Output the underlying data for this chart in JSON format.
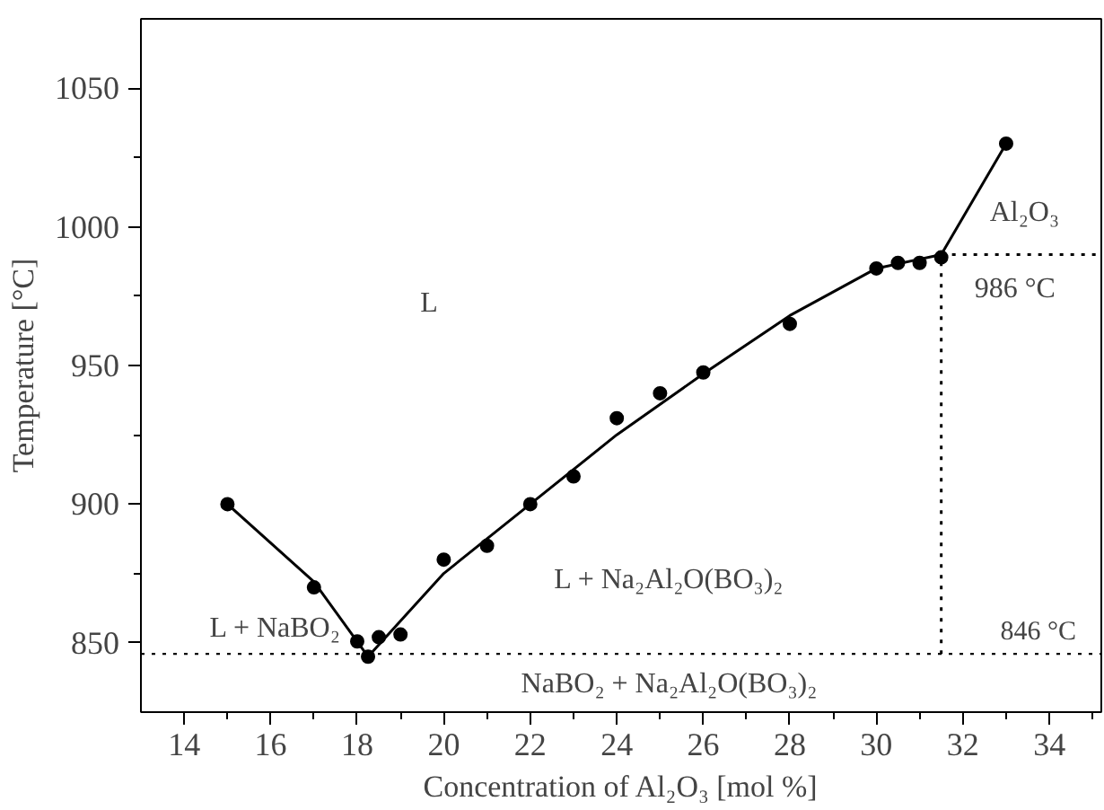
{
  "chart_data": {
    "type": "scatter",
    "xlabel": "Concentration of Al₂O₃ [mol %]",
    "ylabel": "Temperature [°C]",
    "xlim": [
      13,
      35.2
    ],
    "ylim": [
      825,
      1075
    ],
    "xticks": [
      14,
      16,
      18,
      20,
      22,
      24,
      26,
      28,
      30,
      32,
      34,
      {
        "value": 15,
        "label": null
      },
      {
        "value": 17,
        "label": null
      },
      {
        "value": 19,
        "label": null
      },
      {
        "value": 21,
        "label": null
      },
      {
        "value": 23,
        "label": null
      },
      {
        "value": 25,
        "label": null
      },
      {
        "value": 27,
        "label": null
      },
      {
        "value": 29,
        "label": null
      },
      {
        "value": 31,
        "label": null
      },
      {
        "value": 33,
        "label": null
      },
      {
        "value": 35,
        "label": null
      }
    ],
    "yticks": [
      850,
      900,
      950,
      1000,
      1050,
      {
        "value": 875,
        "label": null
      },
      {
        "value": 925,
        "label": null
      },
      {
        "value": 975,
        "label": null
      },
      {
        "value": 1025,
        "label": null
      }
    ],
    "grid": false,
    "series": [
      {
        "marker": "circle",
        "color": "#000000",
        "x": [
          15,
          17,
          18,
          18.25,
          18.5,
          19,
          20,
          21,
          22,
          23,
          24,
          25,
          26,
          28,
          30,
          30.5,
          31,
          31.5,
          33
        ],
        "values": [
          900,
          870,
          850.5,
          845,
          852,
          853,
          880,
          885,
          900,
          910,
          931,
          940,
          947.5,
          965,
          985,
          987,
          987,
          989,
          1030
        ]
      },
      {
        "type": "line",
        "marker": "none",
        "line_style": "solid",
        "color": "#000000",
        "x": [
          15,
          17,
          18.25,
          20,
          22,
          24,
          26,
          28,
          30,
          31.5,
          33
        ],
        "values": [
          900,
          872,
          845,
          875,
          900,
          925,
          947,
          968,
          985,
          990,
          1030
        ]
      },
      {
        "type": "line",
        "marker": "none",
        "line_style": "dotted",
        "color": "#000000",
        "x": [
          31.5,
          31.5
        ],
        "values": [
          846,
          990
        ]
      },
      {
        "type": "line",
        "marker": "none",
        "line_style": "dotted",
        "color": "#000000",
        "x": [
          31.5,
          35.2
        ],
        "values": [
          990,
          990
        ]
      }
    ],
    "ref_lines": [
      {
        "axis": "y",
        "value": 846,
        "label": "846 °C",
        "line_style": "dotted",
        "color": "#000000"
      }
    ],
    "annotations": [
      "L",
      "L + NaBO₂",
      "L + Na₂Al₂O(BO₃)₂",
      "NaBO₂ + Na₂Al₂O(BO₃)₂",
      "Al₂O₃",
      "986 °C"
    ]
  }
}
